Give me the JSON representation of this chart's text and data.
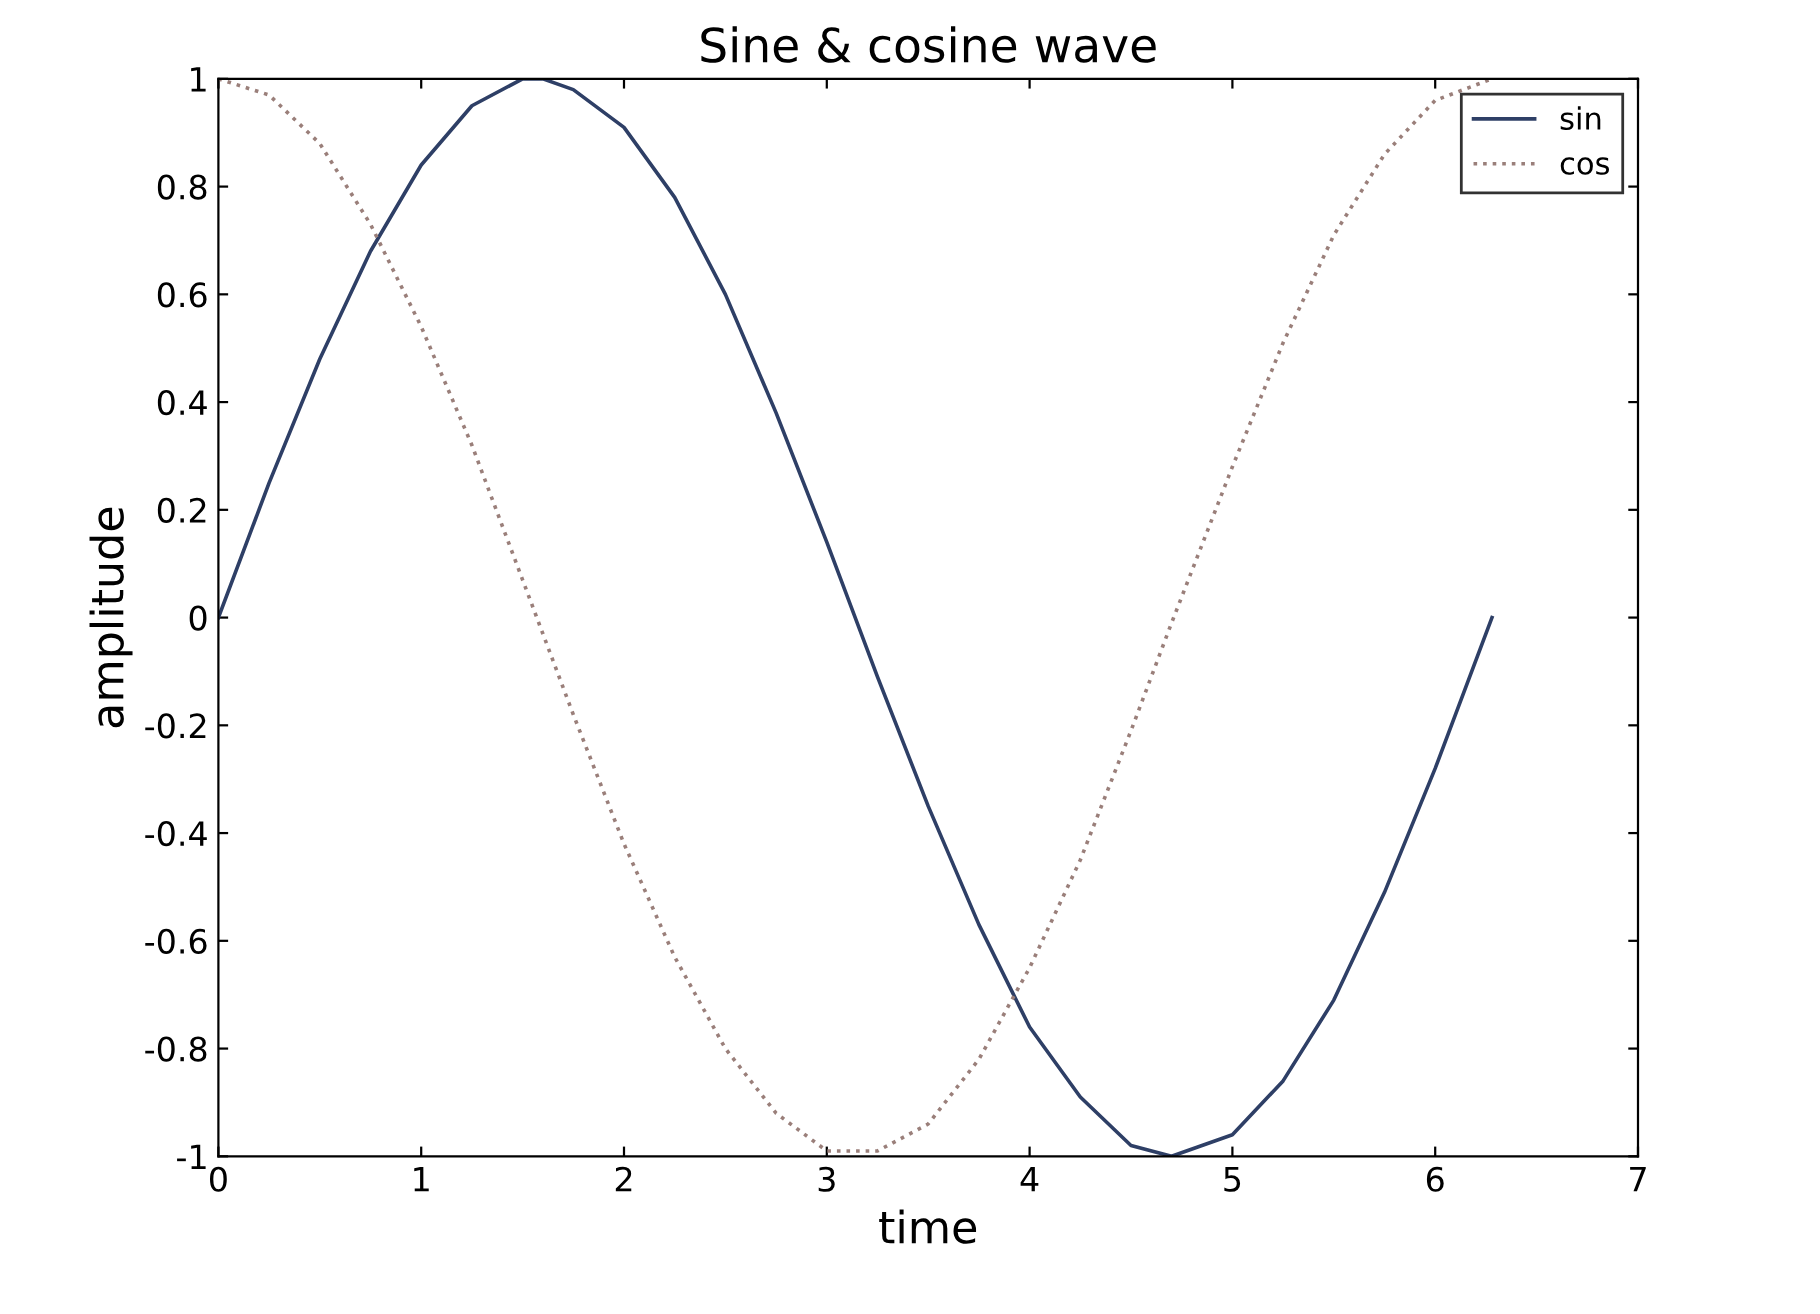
{
  "chart_data": {
    "type": "line",
    "title": "Sine & cosine wave",
    "xlabel": "time",
    "ylabel": "amplitude",
    "xlim": [
      0,
      7
    ],
    "xticks": [
      0,
      1,
      2,
      3,
      4,
      5,
      6,
      7
    ],
    "ylim": [
      -1,
      1
    ],
    "yticks": [
      -1,
      -0.8,
      -0.6,
      -0.4,
      -0.2,
      0,
      0.2,
      0.4,
      0.6,
      0.8,
      1
    ],
    "x": [
      0,
      0.25,
      0.5,
      0.75,
      1,
      1.25,
      1.5,
      1.6,
      1.75,
      2,
      2.25,
      2.5,
      2.75,
      3,
      3.25,
      3.5,
      3.75,
      4,
      4.25,
      4.5,
      4.7,
      5,
      5.25,
      5.5,
      5.75,
      6,
      6.28
    ],
    "series": [
      {
        "name": "sin",
        "color": "#2e3f66",
        "line_style": "solid",
        "values": [
          0,
          0.25,
          0.48,
          0.68,
          0.84,
          0.95,
          1.0,
          1.0,
          0.98,
          0.91,
          0.78,
          0.6,
          0.38,
          0.14,
          -0.11,
          -0.35,
          -0.57,
          -0.76,
          -0.89,
          -0.98,
          -1.0,
          -0.96,
          -0.86,
          -0.71,
          -0.51,
          -0.28,
          0
        ]
      },
      {
        "name": "cos",
        "color": "#9a7f7a",
        "line_style": "dotted",
        "values": [
          1,
          0.97,
          0.88,
          0.73,
          0.54,
          0.32,
          0.07,
          -0.03,
          -0.18,
          -0.42,
          -0.63,
          -0.8,
          -0.92,
          -0.99,
          -0.99,
          -0.94,
          -0.82,
          -0.65,
          -0.45,
          -0.21,
          -0.01,
          0.28,
          0.51,
          0.71,
          0.86,
          0.96,
          1.0
        ]
      }
    ],
    "legend": "top right",
    "grid": false,
    "marker": "none"
  }
}
